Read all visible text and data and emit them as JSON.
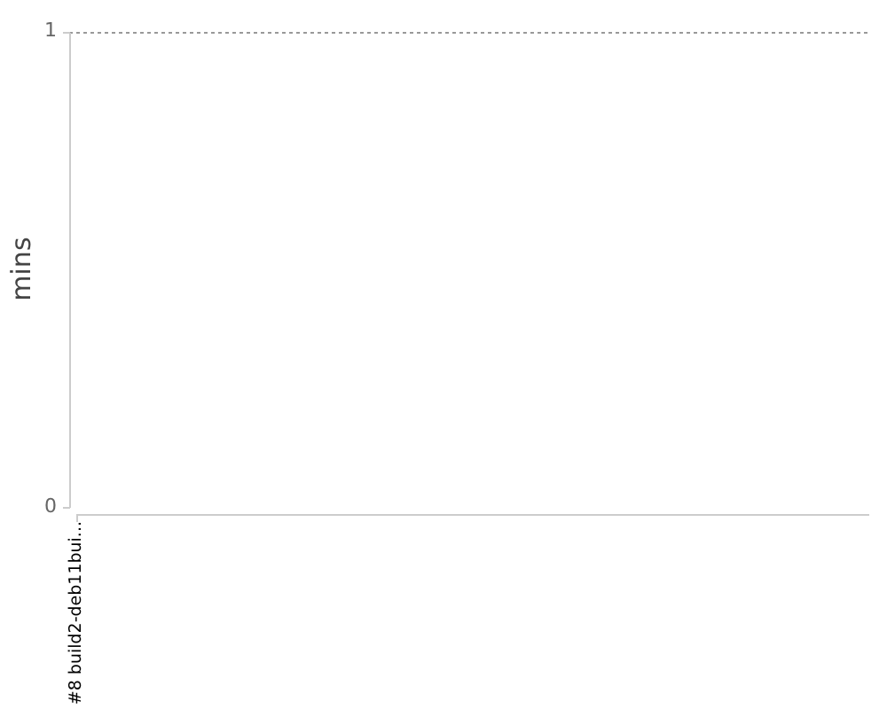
{
  "chart_data": {
    "type": "area",
    "categories": [
      "#8 build2-deb11bui..."
    ],
    "ylabel": "mins",
    "ylim": [
      0,
      1
    ],
    "yticks": [
      0,
      1
    ],
    "grid": "y"
  }
}
